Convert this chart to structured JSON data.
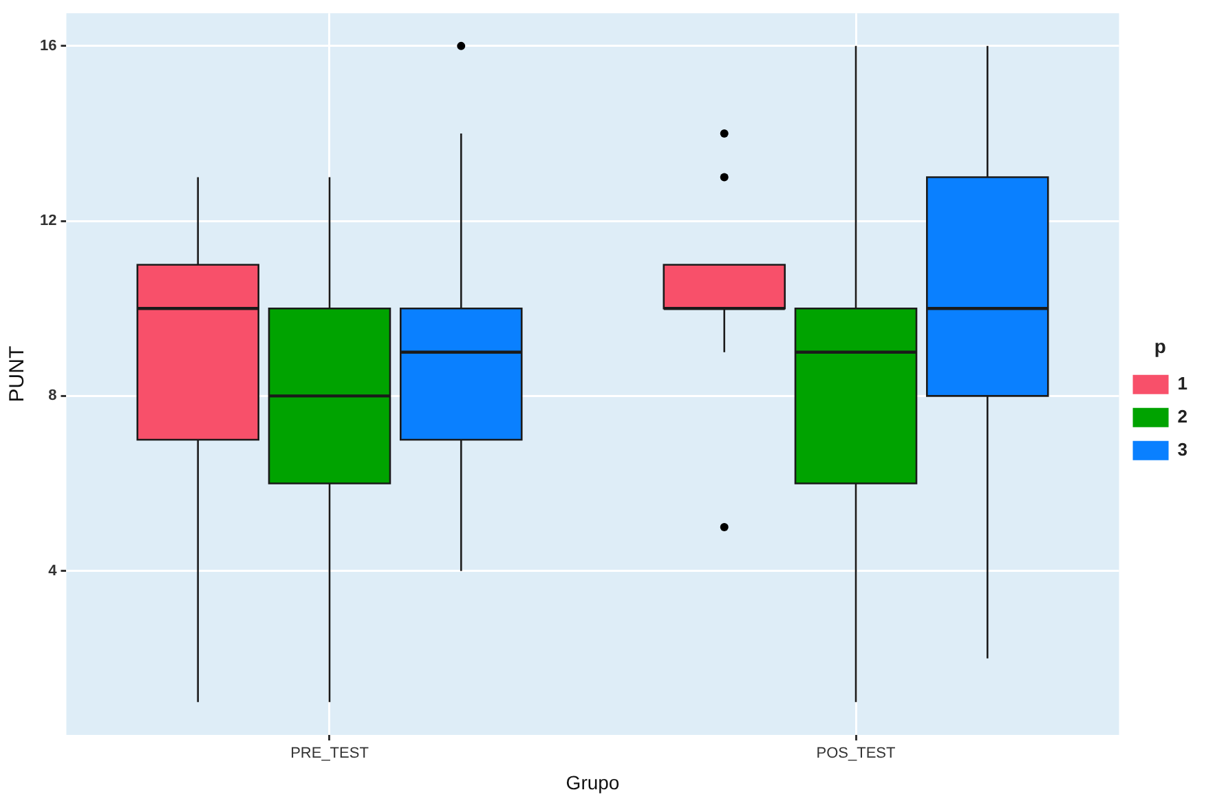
{
  "chart_data": {
    "type": "box",
    "xlabel": "Grupo",
    "ylabel": "PUNT",
    "legend_title": "p",
    "legend": "right",
    "grid": true,
    "categories": [
      "PRE_TEST",
      "POS_TEST"
    ],
    "ylim": [
      0.25,
      16.75
    ],
    "yticks": [
      4,
      8,
      12,
      16
    ],
    "series": [
      {
        "name": "1",
        "color": "#f8506a",
        "boxes": [
          {
            "low": 1,
            "q1": 7,
            "median": 10,
            "q3": 11,
            "high": 13
          },
          {
            "low": 9,
            "q1": 10,
            "median": 10,
            "q3": 11,
            "high": 11,
            "outliers": [
              14,
              13,
              5
            ]
          }
        ]
      },
      {
        "name": "2",
        "color": "#00a300",
        "boxes": [
          {
            "low": 1,
            "q1": 6,
            "median": 8,
            "q3": 10,
            "high": 13
          },
          {
            "low": 1,
            "q1": 6,
            "median": 9,
            "q3": 10,
            "high": 16
          }
        ]
      },
      {
        "name": "3",
        "color": "#0a80ff",
        "boxes": [
          {
            "low": 4,
            "q1": 7,
            "median": 9,
            "q3": 10,
            "high": 14,
            "outliers": [
              16
            ]
          },
          {
            "low": 2,
            "q1": 8,
            "median": 10,
            "q3": 13,
            "high": 16
          }
        ]
      }
    ]
  }
}
